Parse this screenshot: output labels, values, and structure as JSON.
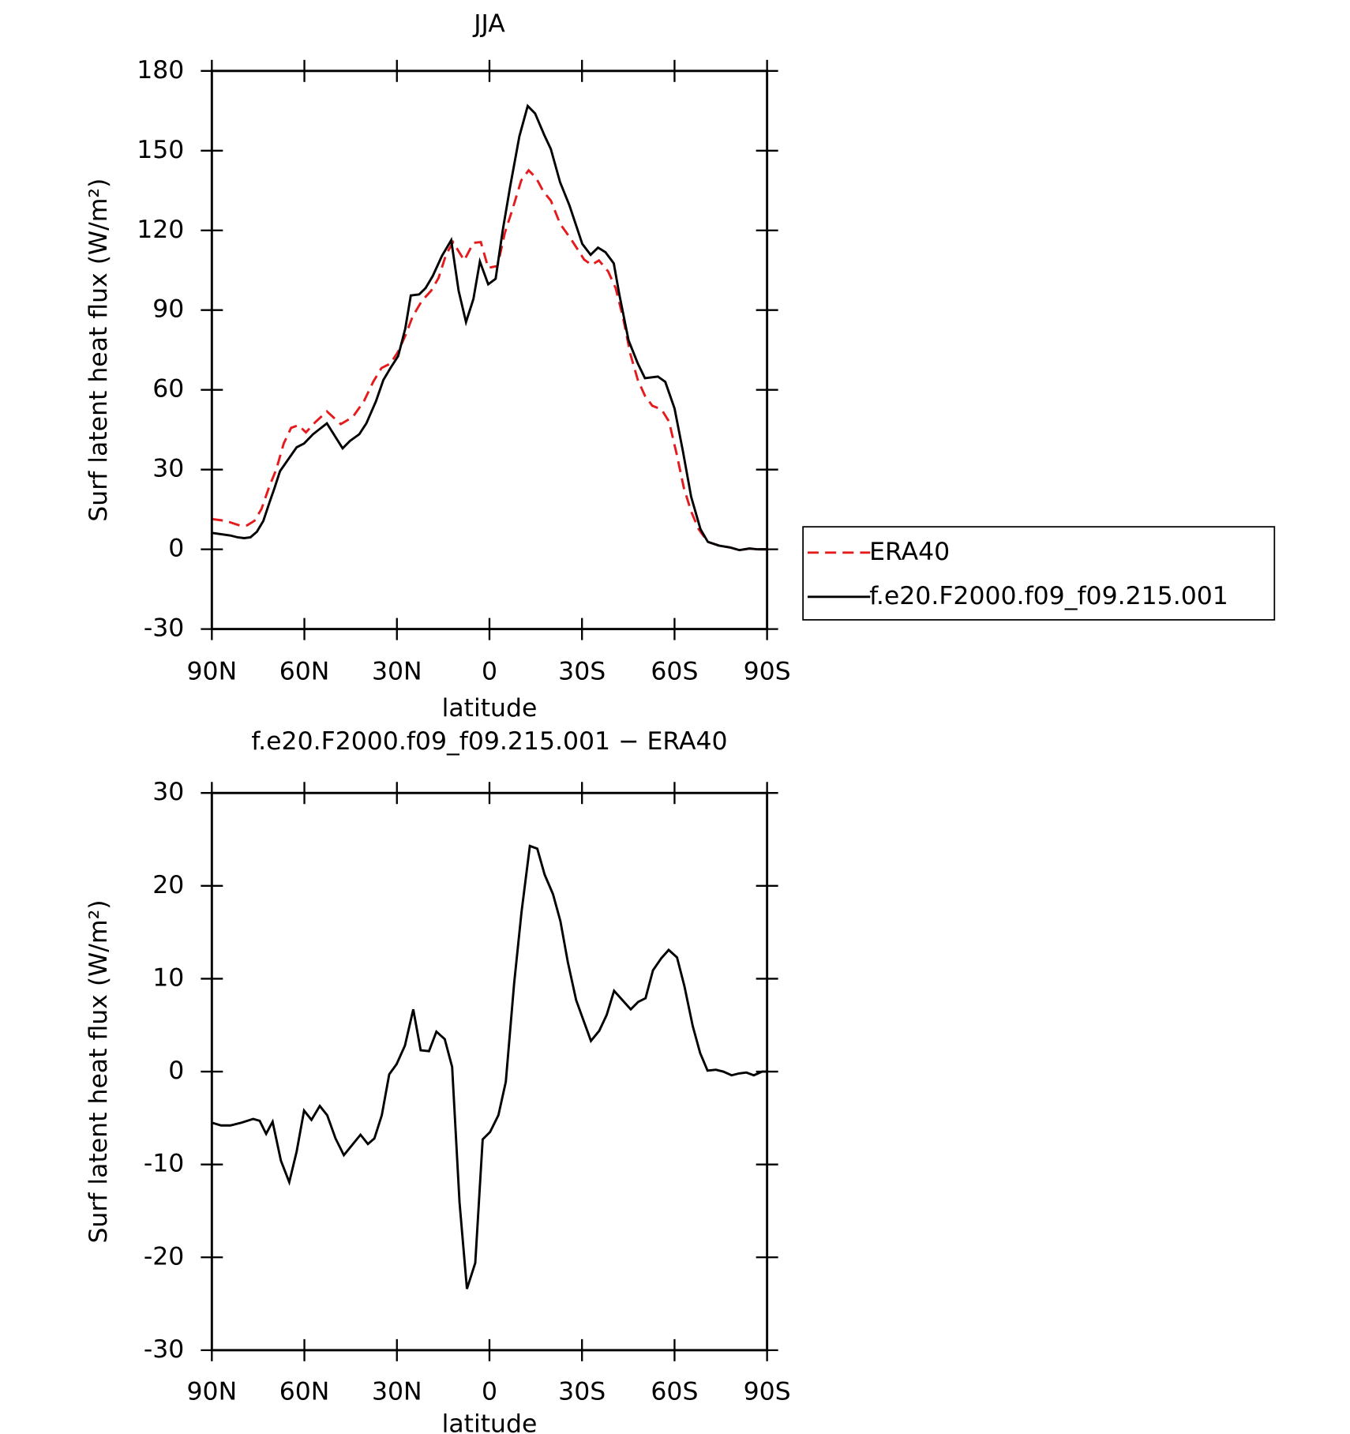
{
  "chart_data": [
    {
      "type": "line",
      "title": "JJA",
      "xlabel": "latitude",
      "ylabel": "Surf latent heat flux (W/m²)",
      "xlim": [
        90,
        -90
      ],
      "xticks": [
        {
          "value": 90,
          "label": "90N"
        },
        {
          "value": 60,
          "label": "60N"
        },
        {
          "value": 30,
          "label": "30N"
        },
        0,
        {
          "value": -30,
          "label": "30S"
        },
        {
          "value": -60,
          "label": "60S"
        },
        {
          "value": -90,
          "label": "90S"
        }
      ],
      "ylim": [
        -30,
        180
      ],
      "yticks": [
        -30,
        0,
        30,
        60,
        90,
        120,
        150,
        180
      ],
      "legend": "right",
      "series": [
        {
          "name": "ERA40",
          "color": "#e41a1c",
          "linestyle": "dashed",
          "x": [
            90,
            85.5,
            81,
            78.6,
            76.2,
            73.9,
            71.5,
            69.1,
            66.7,
            64.3,
            61.9,
            59.5,
            56.5,
            52.7,
            48.2,
            44.3,
            40.7,
            37.7,
            35,
            32.1,
            29.6,
            27.3,
            24.9,
            21.9,
            18.9,
            16.5,
            14.1,
            11.8,
            8.2,
            5.2,
            2.8,
            0.4,
            -2.6,
            -5,
            -7.4,
            -10.3,
            -12.7,
            -15.1,
            -17.5,
            -19.9,
            -22.9,
            -26.5,
            -30.7,
            -33.1,
            -35.5,
            -38.5,
            -40.9,
            -43.3,
            -45.7,
            -48.1,
            -50.4,
            -52.8,
            -55.8,
            -58.2,
            -60.6,
            -63,
            -65.4,
            -67.8,
            -70.8,
            -74.4,
            -78,
            -81,
            -84.3,
            -87,
            -90
          ],
          "values": [
            11.4,
            10.7,
            9,
            9,
            10.7,
            15.2,
            23.2,
            30.1,
            39.8,
            45.7,
            46.7,
            44,
            47.8,
            51.9,
            47.1,
            49.8,
            55.7,
            63,
            68.2,
            69.9,
            74.4,
            80.3,
            87.6,
            93.5,
            97.3,
            102.1,
            110.8,
            115.6,
            108.7,
            115.3,
            115.6,
            105.9,
            106.6,
            119.1,
            127.7,
            138.8,
            142.6,
            139.8,
            134.6,
            131.2,
            122.5,
            116.6,
            109,
            107,
            108.7,
            104.5,
            98.3,
            87.2,
            73.4,
            63.7,
            57.8,
            54,
            52.6,
            48.1,
            36.3,
            23.2,
            14.2,
            7.6,
            2.8,
            1.4,
            0.7,
            -0.3,
            0.3,
            0,
            0
          ]
        },
        {
          "name": "f.e20.F2000.f09_f09.215.001",
          "color": "#000000",
          "linestyle": "solid",
          "x": [
            90,
            84,
            81.6,
            79.5,
            77.5,
            75.4,
            73.3,
            71.5,
            69.7,
            67.9,
            62.5,
            60.1,
            57.2,
            52.7,
            47.6,
            45.2,
            42.2,
            39.9,
            36.8,
            34.4,
            32.1,
            29.6,
            27.3,
            25.5,
            22.8,
            20.7,
            18.4,
            15.4,
            12.4,
            10,
            7.6,
            5.2,
            3.1,
            0.4,
            -2,
            -4.3,
            -6.7,
            -9.7,
            -12.4,
            -14.8,
            -17.8,
            -19.9,
            -22.9,
            -25.9,
            -30.1,
            -32.8,
            -35.2,
            -37.6,
            -40.3,
            -42.1,
            -45.1,
            -48.1,
            -50.4,
            -54.6,
            -57,
            -60,
            -62.7,
            -65.4,
            -68.4,
            -70.8,
            -74.4,
            -78,
            -81,
            -84.3,
            -87,
            -90
          ],
          "values": [
            6.2,
            5.2,
            4.5,
            4.2,
            4.5,
            6.6,
            10.7,
            17,
            23,
            29.4,
            38.4,
            39.8,
            43.3,
            47.4,
            38,
            40.8,
            43.3,
            47.4,
            55.7,
            63.7,
            68.2,
            72.7,
            83,
            95.5,
            95.9,
            98.3,
            102.8,
            110.4,
            116.3,
            97.3,
            85.5,
            94.2,
            108.3,
            99.7,
            101.8,
            120,
            136.4,
            155.4,
            166.8,
            164,
            155.8,
            150.6,
            138.1,
            129.5,
            114.9,
            110.8,
            113.5,
            111.8,
            107.6,
            95.9,
            78.6,
            69.9,
            64.4,
            65,
            63,
            53,
            37,
            19.7,
            7.6,
            2.8,
            1.4,
            0.7,
            -0.3,
            0.3,
            0,
            0
          ]
        }
      ]
    },
    {
      "type": "line",
      "title": "f.e20.F2000.f09_f09.215.001 − ERA40",
      "xlabel": "latitude",
      "ylabel": "Surf latent heat flux (W/m²)",
      "xlim": [
        90,
        -90
      ],
      "xticks": [
        {
          "value": 90,
          "label": "90N"
        },
        {
          "value": 60,
          "label": "60N"
        },
        {
          "value": 30,
          "label": "30N"
        },
        0,
        {
          "value": -30,
          "label": "30S"
        },
        {
          "value": -60,
          "label": "60S"
        },
        {
          "value": -90,
          "label": "90S"
        }
      ],
      "ylim": [
        -30,
        30
      ],
      "yticks": [
        -30,
        -20,
        -10,
        0,
        10,
        20,
        30
      ],
      "series": [
        {
          "color": "#000000",
          "linestyle": "solid",
          "x": [
            90,
            87,
            84,
            80.4,
            76.6,
            74.5,
            72.4,
            70.3,
            67.6,
            64.9,
            62.5,
            60.1,
            57.7,
            55,
            52.6,
            49.9,
            47.2,
            44.5,
            41.8,
            39.4,
            37.3,
            34.9,
            32.5,
            30.1,
            27.4,
            24.7,
            22.3,
            19.6,
            17.2,
            14.5,
            12.1,
            9.7,
            7.3,
            4.6,
            2.2,
            -0.2,
            -2.9,
            -5.3,
            -8,
            -10.4,
            -13.1,
            -15.5,
            -17.9,
            -20.6,
            -23,
            -25.4,
            -28.1,
            -30.5,
            -32.9,
            -35.6,
            -38,
            -40.4,
            -43.1,
            -45.8,
            -48.2,
            -50.6,
            -53,
            -55.7,
            -58.1,
            -60.8,
            -63.2,
            -65.9,
            -68.3,
            -70.7,
            -73.4,
            -75.8,
            -78.5,
            -80.9,
            -83.3,
            -85.7,
            -88.4,
            -90
          ],
          "values": [
            -5.5,
            -5.8,
            -5.8,
            -5.5,
            -5.1,
            -5.3,
            -6.7,
            -5.4,
            -9.6,
            -11.9,
            -8.6,
            -4.2,
            -5.2,
            -3.7,
            -4.7,
            -7.2,
            -9,
            -7.9,
            -6.8,
            -7.8,
            -7.2,
            -4.7,
            -0.3,
            0.8,
            2.8,
            6.7,
            2.3,
            2.2,
            4.3,
            3.5,
            0.5,
            -14.1,
            -23.4,
            -20.6,
            -7.3,
            -6.5,
            -4.7,
            -1.1,
            9.5,
            17.2,
            24.3,
            24,
            21.2,
            19.1,
            16.2,
            11.8,
            7.7,
            5.5,
            3.3,
            4.4,
            6.1,
            8.7,
            7.7,
            6.7,
            7.5,
            7.9,
            10.9,
            12.2,
            13.1,
            12.3,
            9.2,
            4.9,
            2,
            0.1,
            0.2,
            0,
            -0.4,
            -0.2,
            -0.1,
            -0.4,
            0,
            0
          ]
        }
      ]
    }
  ]
}
